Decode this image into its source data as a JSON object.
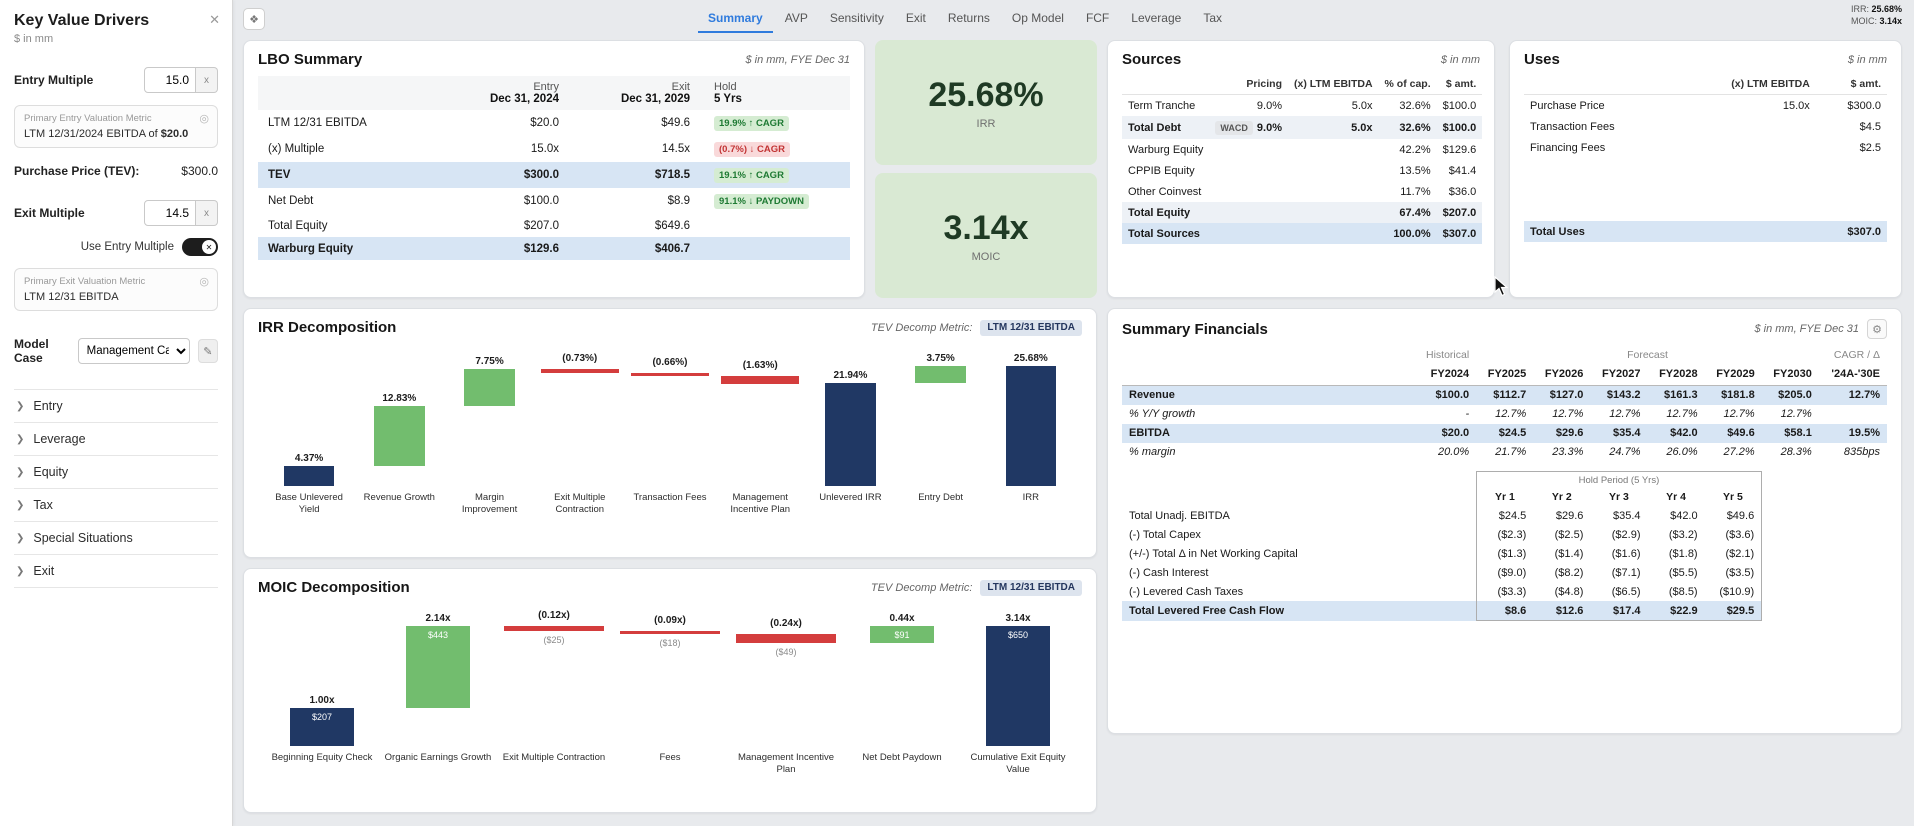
{
  "topbar": {
    "tabs": [
      "Summary",
      "AVP",
      "Sensitivity",
      "Exit",
      "Returns",
      "Op Model",
      "FCF",
      "Leverage",
      "Tax"
    ],
    "active_tab": "Summary",
    "irr_label": "IRR:",
    "irr_value": "25.68%",
    "moic_label": "MOIC:",
    "moic_value": "3.14x"
  },
  "sidebar": {
    "title": "Key Value Drivers",
    "subtitle": "$ in mm",
    "entry_multiple": {
      "label": "Entry Multiple",
      "value": "15.0",
      "suffix": "x"
    },
    "entry_metric": {
      "title": "Primary Entry Valuation Metric",
      "text": "LTM 12/31/2024 EBITDA of",
      "value": "$20.0"
    },
    "purchase_price": {
      "label": "Purchase Price (TEV):",
      "value": "$300.0"
    },
    "exit_multiple": {
      "label": "Exit Multiple",
      "value": "14.5",
      "suffix": "x"
    },
    "use_entry_multiple": {
      "label": "Use Entry Multiple"
    },
    "exit_metric": {
      "title": "Primary Exit Valuation Metric",
      "text": "LTM 12/31 EBITDA",
      "value": ""
    },
    "model_case": {
      "label": "Model Case",
      "value": "Management Case"
    },
    "sections": [
      "Entry",
      "Leverage",
      "Equity",
      "Tax",
      "Special Situations",
      "Exit"
    ]
  },
  "lbo_summary": {
    "title": "LBO Summary",
    "units": "$ in mm, FYE Dec 31",
    "col_headers": [
      {
        "l1": "Entry",
        "l2": "Dec 31, 2024"
      },
      {
        "l1": "Exit",
        "l2": "Dec 31, 2029"
      },
      {
        "l1": "Hold",
        "l2": "5 Yrs"
      }
    ],
    "rows": [
      {
        "label": "LTM 12/31 EBITDA",
        "entry": "$20.0",
        "exit": "$49.6",
        "badge": "19.9% ↑ CAGR",
        "badge_type": "green"
      },
      {
        "label": "(x) Multiple",
        "entry": "15.0x",
        "exit": "14.5x",
        "badge": "(0.7%) ↓ CAGR",
        "badge_type": "red"
      },
      {
        "label": "TEV",
        "entry": "$300.0",
        "exit": "$718.5",
        "badge": "19.1% ↑ CAGR",
        "badge_type": "green",
        "highlight": true,
        "bold": true
      },
      {
        "label": "Net Debt",
        "entry": "$100.0",
        "exit": "$8.9",
        "badge": "91.1% ↓ PAYDOWN",
        "badge_type": "green"
      },
      {
        "label": "Total Equity",
        "entry": "$207.0",
        "exit": "$649.6"
      },
      {
        "label": "Warburg Equity",
        "entry": "$129.6",
        "exit": "$406.7",
        "highlight": true,
        "bold": true
      }
    ]
  },
  "irr_box": {
    "value": "25.68%",
    "label": "IRR"
  },
  "moic_box": {
    "value": "3.14x",
    "label": "MOIC"
  },
  "sources": {
    "title": "Sources",
    "units": "$ in mm",
    "headers": [
      "Pricing",
      "(x) LTM EBITDA",
      "% of cap.",
      "$ amt."
    ],
    "rows": [
      {
        "label": "Term Tranche",
        "pricing": "9.0%",
        "ltm": "5.0x",
        "cap": "32.6%",
        "amt": "$100.0"
      },
      {
        "label": "Total Debt",
        "badge": "WACD",
        "pricing": "9.0%",
        "ltm": "5.0x",
        "cap": "32.6%",
        "amt": "$100.0",
        "bold": true,
        "shade": true
      },
      {
        "label": "Warburg Equity",
        "pricing": "",
        "ltm": "",
        "cap": "42.2%",
        "amt": "$129.6"
      },
      {
        "label": "CPPIB Equity",
        "pricing": "",
        "ltm": "",
        "cap": "13.5%",
        "amt": "$41.4"
      },
      {
        "label": "Other Coinvest",
        "pricing": "",
        "ltm": "",
        "cap": "11.7%",
        "amt": "$36.0"
      },
      {
        "label": "Total Equity",
        "pricing": "",
        "ltm": "",
        "cap": "67.4%",
        "amt": "$207.0",
        "bold": true,
        "shade": true
      },
      {
        "label": "Total Sources",
        "pricing": "",
        "ltm": "",
        "cap": "100.0%",
        "amt": "$307.0",
        "bold": true,
        "highlight": true
      }
    ]
  },
  "uses": {
    "title": "Uses",
    "units": "$ in mm",
    "headers": [
      "(x) LTM EBITDA",
      "$ amt."
    ],
    "rows": [
      {
        "label": "Purchase Price",
        "ltm": "15.0x",
        "amt": "$300.0"
      },
      {
        "label": "Transaction Fees",
        "ltm": "",
        "amt": "$4.5"
      },
      {
        "label": "Financing Fees",
        "ltm": "",
        "amt": "$2.5"
      },
      {
        "label": "",
        "ltm": "",
        "amt": ""
      },
      {
        "label": "",
        "ltm": "",
        "amt": ""
      },
      {
        "label": "",
        "ltm": "",
        "amt": ""
      },
      {
        "label": "Total Uses",
        "ltm": "",
        "amt": "$307.0",
        "bold": true,
        "highlight": true
      }
    ]
  },
  "chart_data": [
    {
      "type": "waterfall",
      "title": "IRR Decomposition",
      "metric_label": "TEV Decomp Metric:",
      "metric_value": "LTM 12/31 EBITDA",
      "unit": "%",
      "ymax": 25.68,
      "items": [
        {
          "label": "Base Unlevered Yield",
          "value": 4.37,
          "display": "4.37%",
          "kind": "start"
        },
        {
          "label": "Revenue Growth",
          "value": 12.83,
          "display": "12.83%",
          "kind": "pos"
        },
        {
          "label": "Margin Improvement",
          "value": 7.75,
          "display": "7.75%",
          "kind": "pos"
        },
        {
          "label": "Exit Multiple Contraction",
          "value": -0.73,
          "display": "(0.73%)",
          "kind": "neg"
        },
        {
          "label": "Transaction Fees",
          "value": -0.66,
          "display": "(0.66%)",
          "kind": "neg"
        },
        {
          "label": "Management Incentive Plan",
          "value": -1.63,
          "display": "(1.63%)",
          "kind": "neg"
        },
        {
          "label": "Unlevered IRR",
          "value": 21.94,
          "display": "21.94%",
          "kind": "total"
        },
        {
          "label": "Entry Debt",
          "value": 3.75,
          "display": "3.75%",
          "kind": "pos"
        },
        {
          "label": "IRR",
          "value": 25.68,
          "display": "25.68%",
          "kind": "total"
        }
      ]
    },
    {
      "type": "waterfall",
      "title": "MOIC Decomposition",
      "metric_label": "TEV Decomp Metric:",
      "metric_value": "LTM 12/31 EBITDA",
      "unit": "x",
      "ymax": 3.14,
      "items": [
        {
          "label": "Beginning Equity Check",
          "value": 1.0,
          "display": "1.00x",
          "sub": "$207",
          "kind": "start"
        },
        {
          "label": "Organic Earnings Growth",
          "value": 2.14,
          "display": "2.14x",
          "sub": "$443",
          "kind": "pos"
        },
        {
          "label": "Exit Multiple Contraction",
          "value": -0.12,
          "display": "(0.12x)",
          "sub": "($25)",
          "kind": "neg"
        },
        {
          "label": "Fees",
          "value": -0.09,
          "display": "(0.09x)",
          "sub": "($18)",
          "kind": "neg"
        },
        {
          "label": "Management Incentive Plan",
          "value": -0.24,
          "display": "(0.24x)",
          "sub": "($49)",
          "kind": "neg"
        },
        {
          "label": "Net Debt Paydown",
          "value": 0.44,
          "display": "0.44x",
          "sub": "$91",
          "kind": "pos"
        },
        {
          "label": "Cumulative Exit Equity Value",
          "value": 3.14,
          "display": "3.14x",
          "sub": "$650",
          "kind": "total"
        }
      ]
    }
  ],
  "summary_financials": {
    "title": "Summary Financials",
    "units": "$ in mm, FYE Dec 31",
    "group_headers": {
      "historical": "Historical",
      "forecast": "Forecast",
      "cagr": "CAGR / Δ"
    },
    "col_headers": [
      "FY2024",
      "FY2025",
      "FY2026",
      "FY2027",
      "FY2028",
      "FY2029",
      "FY2030",
      "'24A-'30E"
    ],
    "top_rows": [
      {
        "label": "Revenue",
        "values": [
          "$100.0",
          "$112.7",
          "$127.0",
          "$143.2",
          "$161.3",
          "$181.8",
          "$205.0"
        ],
        "cagr": "12.7%",
        "bold": true,
        "highlight": true
      },
      {
        "label": "% Y/Y growth",
        "values": [
          "-",
          "12.7%",
          "12.7%",
          "12.7%",
          "12.7%",
          "12.7%",
          "12.7%"
        ],
        "cagr": "",
        "italic": true
      },
      {
        "label": "EBITDA",
        "values": [
          "$20.0",
          "$24.5",
          "$29.6",
          "$35.4",
          "$42.0",
          "$49.6",
          "$58.1"
        ],
        "cagr": "19.5%",
        "bold": true,
        "highlight": true
      },
      {
        "label": "% margin",
        "values": [
          "20.0%",
          "21.7%",
          "23.3%",
          "24.7%",
          "26.0%",
          "27.2%",
          "28.3%"
        ],
        "cagr": "835bps",
        "italic": true
      }
    ],
    "hold_period": {
      "title": "Hold Period (5 Yrs)",
      "year_headers": [
        "Yr 1",
        "Yr 2",
        "Yr 3",
        "Yr 4",
        "Yr 5"
      ],
      "rows": [
        {
          "label": "Total Unadj. EBITDA",
          "values": [
            "$24.5",
            "$29.6",
            "$35.4",
            "$42.0",
            "$49.6"
          ]
        },
        {
          "label": "(-) Total Capex",
          "values": [
            "($2.3)",
            "($2.5)",
            "($2.9)",
            "($3.2)",
            "($3.6)"
          ]
        },
        {
          "label": "(+/-) Total Δ in Net Working Capital",
          "values": [
            "($1.3)",
            "($1.4)",
            "($1.6)",
            "($1.8)",
            "($2.1)"
          ]
        },
        {
          "label": "(-) Cash Interest",
          "values": [
            "($9.0)",
            "($8.2)",
            "($7.1)",
            "($5.5)",
            "($3.5)"
          ]
        },
        {
          "label": "(-) Levered Cash Taxes",
          "values": [
            "($3.3)",
            "($4.8)",
            "($6.5)",
            "($8.5)",
            "($10.9)"
          ]
        },
        {
          "label": "Total Levered Free Cash Flow",
          "values": [
            "$8.6",
            "$12.6",
            "$17.4",
            "$22.9",
            "$29.5"
          ],
          "bold": true,
          "highlight": true
        }
      ]
    }
  }
}
